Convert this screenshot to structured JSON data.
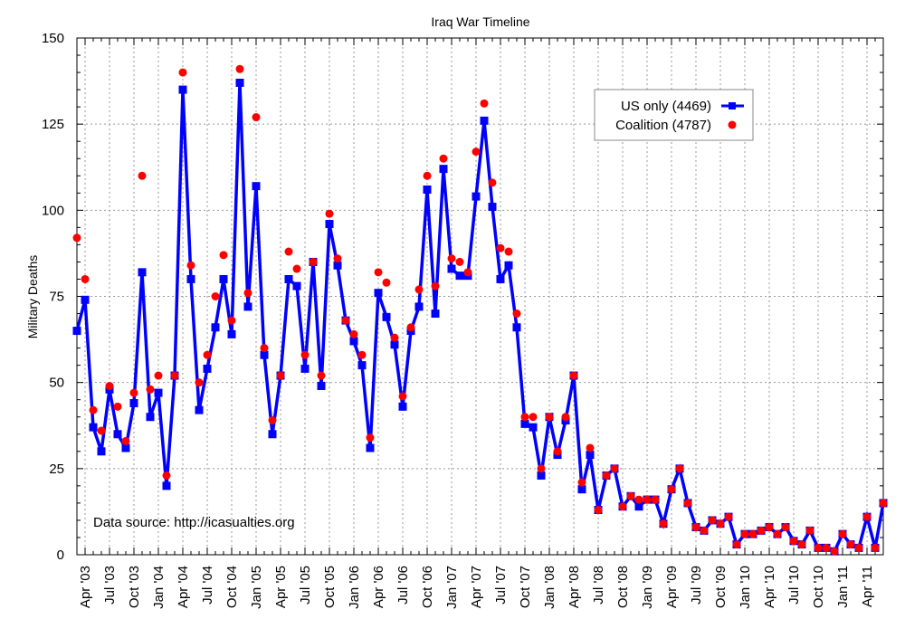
{
  "chart_data": {
    "type": "line",
    "title": "Iraq War Timeline",
    "xlabel": "",
    "ylabel": "Military Deaths",
    "ylim": [
      0,
      150
    ],
    "yticks": [
      0,
      25,
      50,
      75,
      100,
      125,
      150
    ],
    "grid": true,
    "legend_position": "top-right",
    "annotation": "Data source: http://icasualties.org",
    "x_start": "Mar 2003",
    "x_end": "Jun 2011",
    "xtick_labels": [
      "Apr '03",
      "Jul '03",
      "Oct '03",
      "Jan '04",
      "Apr '04",
      "Jul '04",
      "Oct '04",
      "Jan '05",
      "Apr '05",
      "Jul '05",
      "Oct '05",
      "Jan '06",
      "Apr '06",
      "Jul '06",
      "Oct '06",
      "Jan '07",
      "Apr '07",
      "Jul '07",
      "Oct '07",
      "Jan '08",
      "Apr '08",
      "Jul '08",
      "Oct '08",
      "Jan '09",
      "Apr '09",
      "Jul '09",
      "Oct '09",
      "Jan '10",
      "Apr '10",
      "Jul '10",
      "Oct '10",
      "Jan '11",
      "Apr '11"
    ],
    "xtick_month_index": [
      1,
      4,
      7,
      10,
      13,
      16,
      19,
      22,
      25,
      28,
      31,
      34,
      37,
      40,
      43,
      46,
      49,
      52,
      55,
      58,
      61,
      64,
      67,
      70,
      73,
      76,
      79,
      82,
      85,
      88,
      91,
      94,
      97
    ],
    "series": [
      {
        "name": "US only (4469)",
        "style": "line+square",
        "color": "#0000ff",
        "values": [
          65,
          74,
          37,
          30,
          48,
          35,
          31,
          44,
          82,
          40,
          47,
          20,
          52,
          135,
          80,
          42,
          54,
          66,
          80,
          64,
          137,
          72,
          107,
          58,
          35,
          52,
          80,
          78,
          54,
          85,
          49,
          96,
          84,
          68,
          62,
          55,
          31,
          76,
          69,
          61,
          43,
          65,
          72,
          106,
          70,
          112,
          83,
          81,
          81,
          104,
          126,
          101,
          80,
          84,
          66,
          38,
          37,
          23,
          40,
          29,
          39,
          52,
          19,
          29,
          13,
          23,
          25,
          14,
          17,
          14,
          16,
          16,
          9,
          19,
          25,
          15,
          8,
          7,
          10,
          9,
          11,
          3,
          6,
          6,
          7,
          8,
          6,
          8,
          4,
          3,
          7,
          2,
          2,
          1,
          6,
          3,
          2,
          11,
          2,
          15
        ]
      },
      {
        "name": "Coalition (4787)",
        "style": "points",
        "color": "#ff0000",
        "values": [
          92,
          80,
          42,
          36,
          49,
          43,
          33,
          47,
          110,
          48,
          52,
          23,
          52,
          140,
          84,
          50,
          58,
          75,
          87,
          68,
          141,
          76,
          127,
          60,
          39,
          52,
          88,
          83,
          58,
          85,
          52,
          99,
          86,
          68,
          64,
          58,
          34,
          82,
          79,
          63,
          46,
          66,
          77,
          110,
          78,
          115,
          86,
          85,
          82,
          117,
          131,
          108,
          89,
          88,
          70,
          40,
          40,
          25,
          40,
          30,
          40,
          52,
          21,
          31,
          13,
          23,
          25,
          14,
          17,
          16,
          16,
          16,
          9,
          19,
          25,
          15,
          8,
          7,
          10,
          9,
          11,
          3,
          6,
          6,
          7,
          8,
          6,
          8,
          4,
          3,
          7,
          2,
          2,
          1,
          6,
          3,
          2,
          11,
          2,
          15
        ]
      }
    ]
  }
}
